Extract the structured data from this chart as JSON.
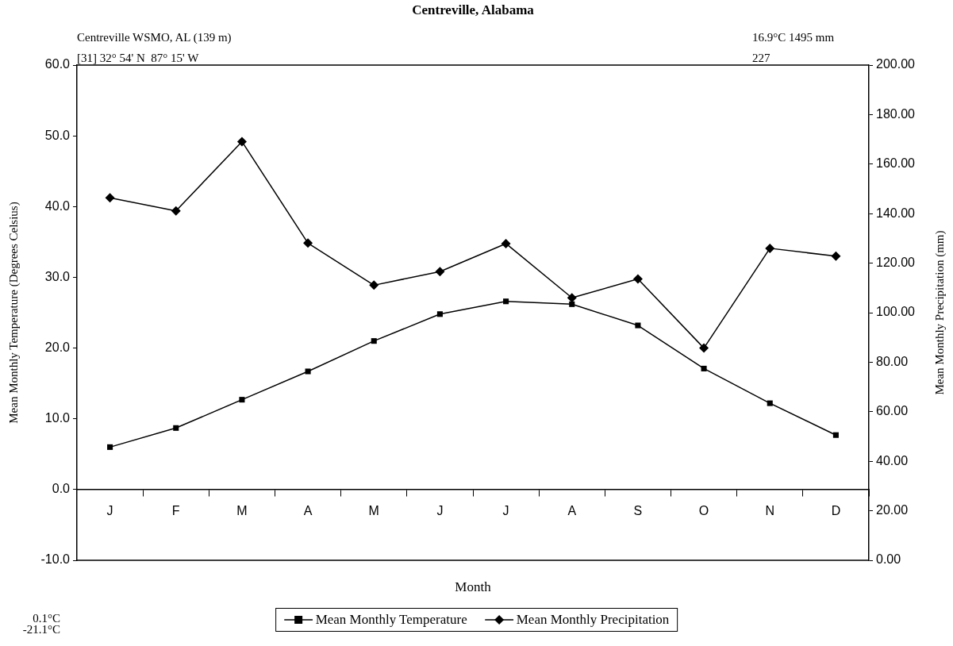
{
  "chart_data": {
    "type": "line",
    "title": "Centreville, Alabama",
    "xlabel": "Month",
    "ylabel": "Mean Monthly Temperature (Degrees Celsius)",
    "y2label": "Mean Monthly Precipitation (mm)",
    "categories": [
      "J",
      "F",
      "M",
      "A",
      "M",
      "J",
      "J",
      "A",
      "S",
      "O",
      "N",
      "D"
    ],
    "series": [
      {
        "name": "Mean Monthly Temperature",
        "color": "#000000",
        "marker": "square",
        "values": [
          6.0,
          8.7,
          12.7,
          16.7,
          21.0,
          24.8,
          26.6,
          26.2,
          23.2,
          17.1,
          12.2,
          7.7
        ]
      },
      {
        "name": "Mean Monthly Precipitation",
        "color": "#000000",
        "marker": "diamond",
        "axis": "y2",
        "values": [
          146.4,
          141.1,
          169.1,
          128.1,
          111.1,
          116.6,
          127.9,
          106.0,
          113.6,
          85.7,
          126.0,
          122.8
        ]
      }
    ],
    "ylim": [
      -10,
      60
    ],
    "yticks": [
      {
        "value": -10,
        "label": "-10.0"
      },
      {
        "value": 0,
        "label": "0.0"
      },
      {
        "value": 10,
        "label": "10.0"
      },
      {
        "value": 20,
        "label": "20.0"
      },
      {
        "value": 30,
        "label": "30.0"
      },
      {
        "value": 40,
        "label": "40.0"
      },
      {
        "value": 50,
        "label": "50.0"
      },
      {
        "value": 60,
        "label": "60.0"
      }
    ],
    "y2lim": [
      0,
      200
    ],
    "y2ticks": [
      {
        "value": 0,
        "label": "0.00"
      },
      {
        "value": 20,
        "label": "20.00"
      },
      {
        "value": 40,
        "label": "40.00"
      },
      {
        "value": 60,
        "label": "60.00"
      },
      {
        "value": 80,
        "label": "80.00"
      },
      {
        "value": 100,
        "label": "100.00"
      },
      {
        "value": 120,
        "label": "120.00"
      },
      {
        "value": 140,
        "label": "140.00"
      },
      {
        "value": 160,
        "label": "160.00"
      },
      {
        "value": 180,
        "label": "180.00"
      },
      {
        "value": 200,
        "label": "200.00"
      }
    ],
    "legend": "bottom",
    "annotations": [
      "Centreville WSMO, AL (139 m)",
      "[31] 32° 54' N  87° 15' W",
      "16.9°C 1495 mm",
      "227",
      "0.1°C",
      "-21.1°C"
    ]
  }
}
